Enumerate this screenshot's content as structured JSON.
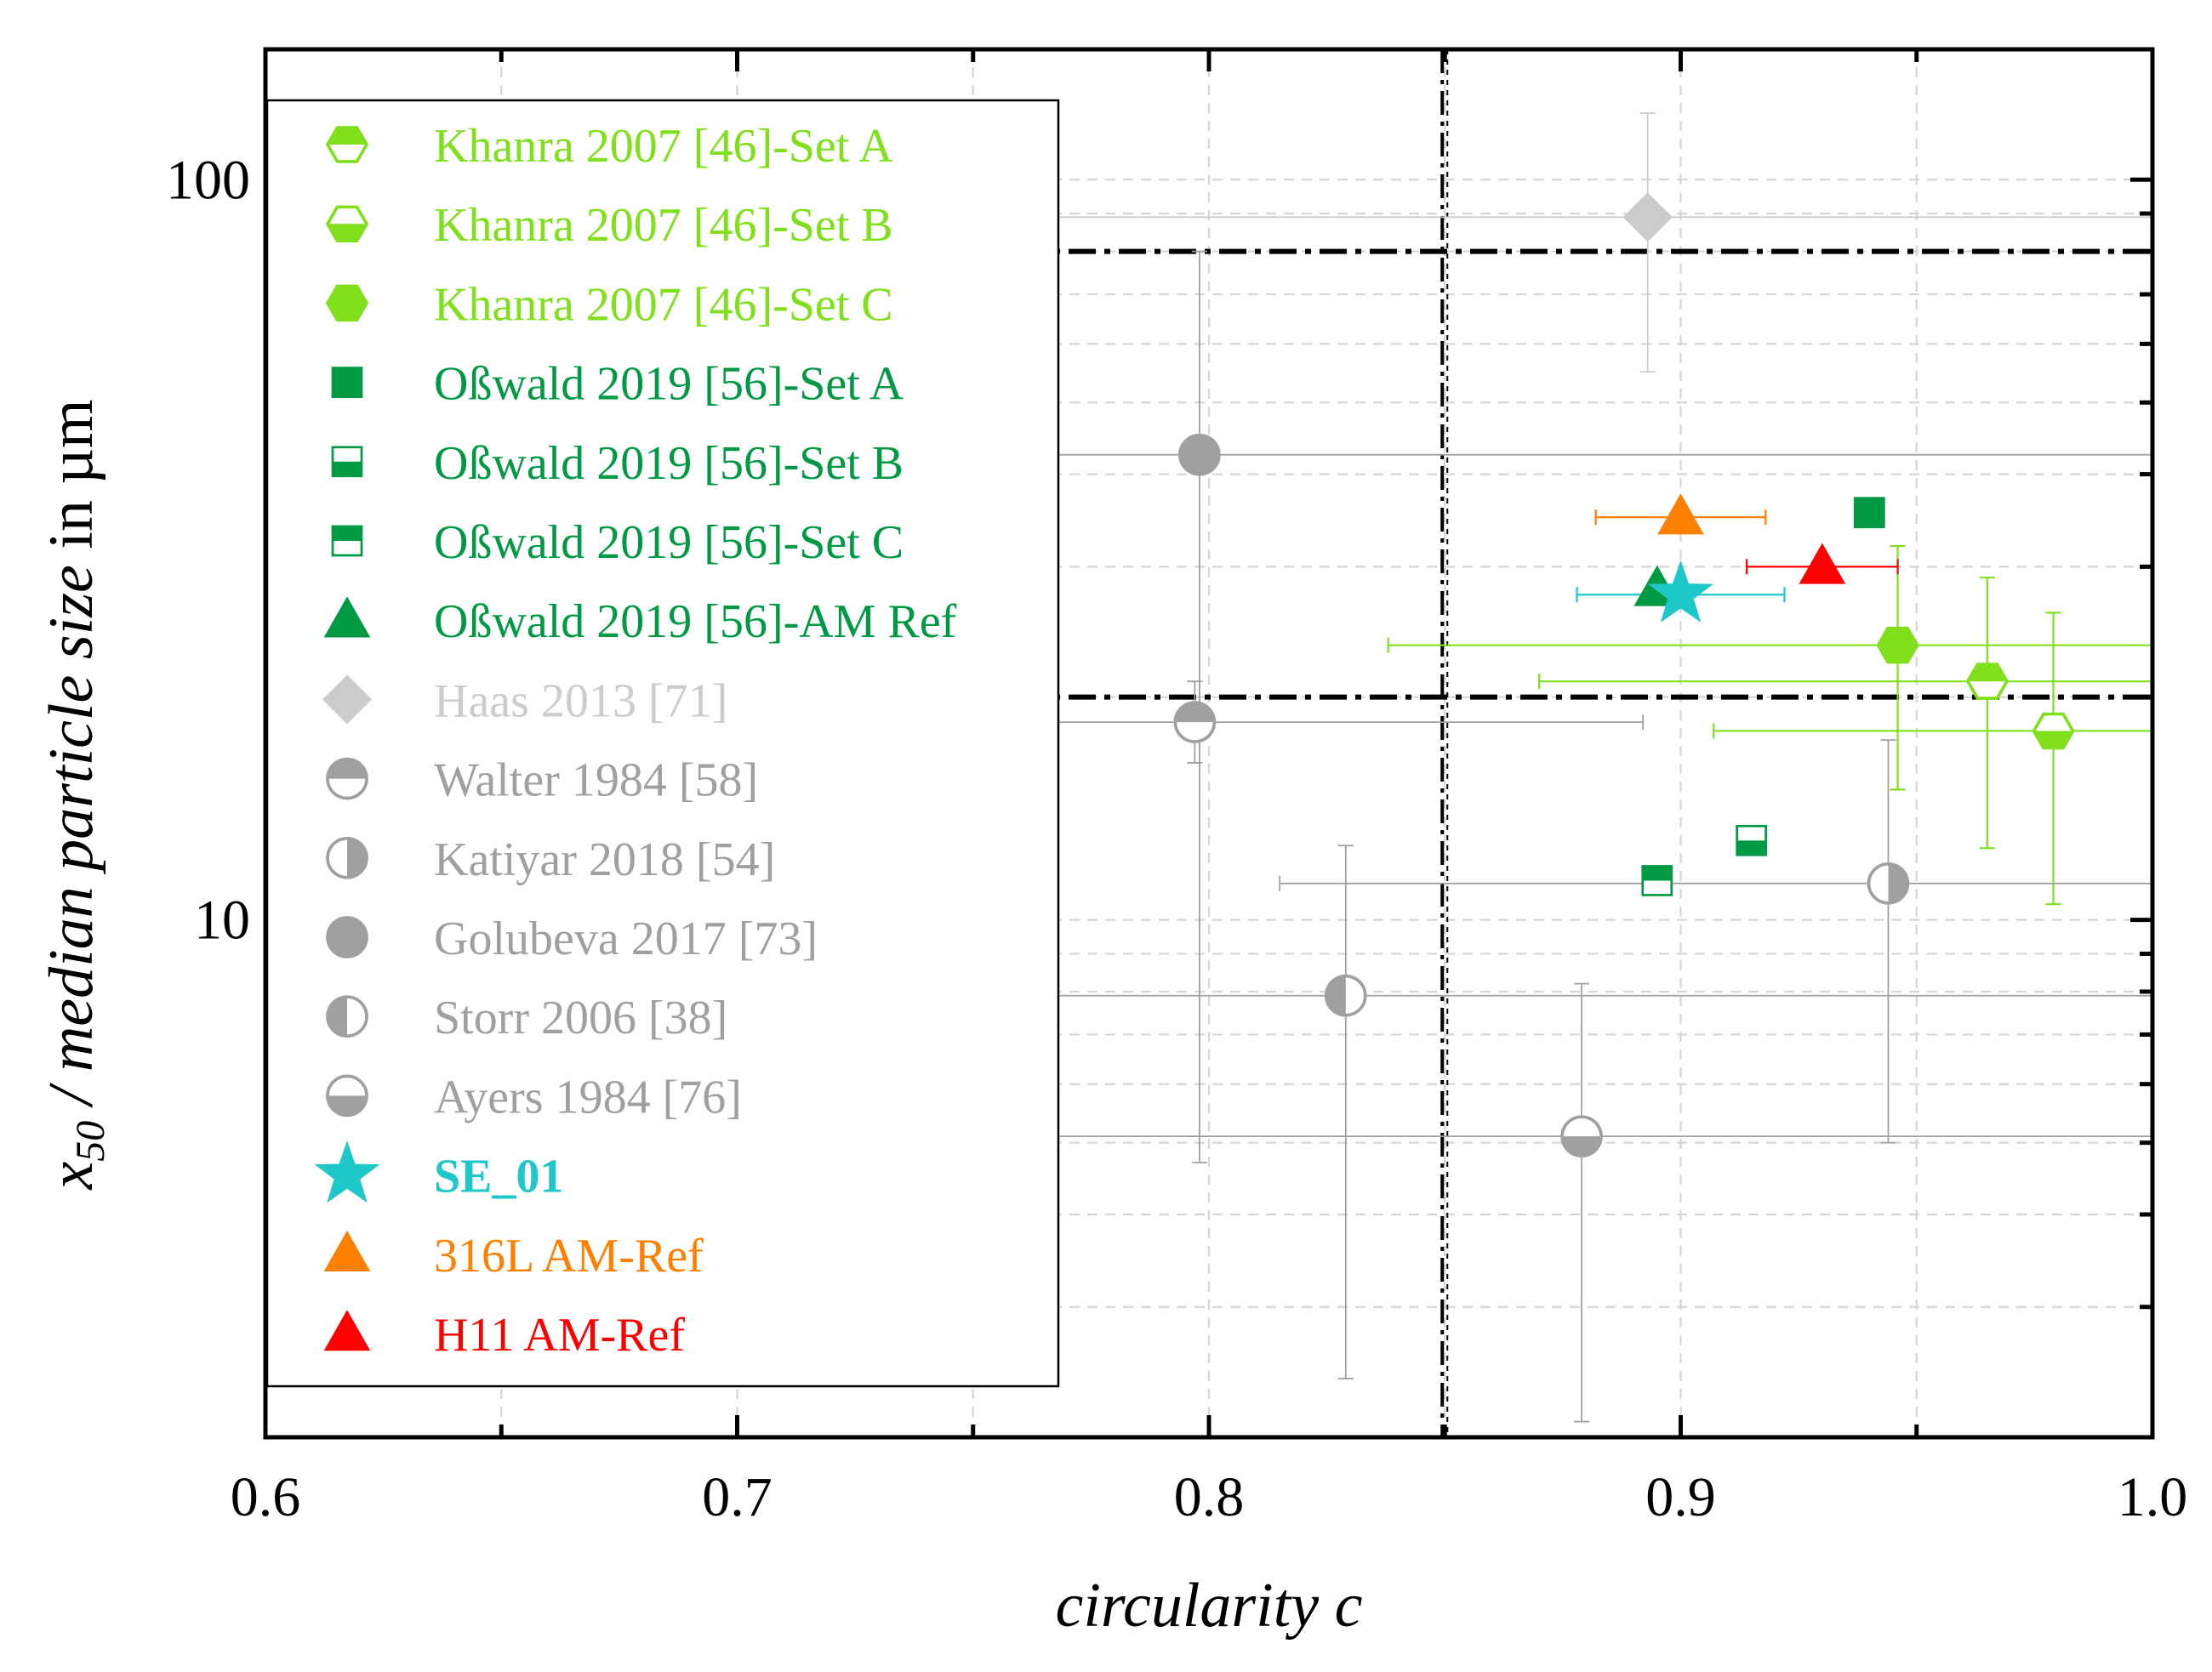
{
  "chart_data": {
    "type": "scatter",
    "xlabel": "circularity c",
    "ylabel_parts": {
      "var": "x",
      "sub": "50",
      "mid": " / median particle size",
      "unit": " in µm"
    },
    "xlim": [
      0.6,
      1.0
    ],
    "ylim": [
      2.0,
      150
    ],
    "yscale": "log",
    "xticks": [
      0.6,
      0.7,
      0.8,
      0.9,
      1.0
    ],
    "xtick_labels": [
      "0.6",
      "0.7",
      "0.8",
      "0.9",
      "1.0"
    ],
    "yticks": [
      10,
      100
    ],
    "ytick_labels": [
      "10",
      "100"
    ],
    "grid": true,
    "legend_position": "top-left",
    "reference_lines": {
      "vertical_x": 0.85,
      "horizontal_y": [
        20,
        80
      ]
    },
    "series": [
      {
        "name": "Khanra 2007 [46]-Set A",
        "color": "#7fe01b",
        "marker": "hexagon",
        "fill": "top",
        "points": [
          {
            "x": 0.965,
            "y": 21,
            "xerr": [
              0.87,
              1.0
            ],
            "yerr": [
              12.5,
              29
            ]
          }
        ]
      },
      {
        "name": "Khanra 2007 [46]-Set B",
        "color": "#7fe01b",
        "marker": "hexagon",
        "fill": "bottom",
        "points": [
          {
            "x": 0.979,
            "y": 18,
            "xerr": [
              0.907,
              1.0
            ],
            "yerr": [
              10.5,
              26
            ]
          }
        ]
      },
      {
        "name": "Khanra 2007 [46]-Set C",
        "color": "#7fe01b",
        "marker": "hexagon",
        "fill": "full",
        "points": [
          {
            "x": 0.946,
            "y": 23.5,
            "xerr": [
              0.838,
              1.0
            ],
            "yerr": [
              15,
              32
            ]
          }
        ]
      },
      {
        "name": "Oßwald 2019 [56]-Set A",
        "color": "#009a44",
        "marker": "square",
        "fill": "full",
        "points": [
          {
            "x": 0.94,
            "y": 35.5
          }
        ]
      },
      {
        "name": "Oßwald 2019 [56]-Set B",
        "color": "#009a44",
        "marker": "square",
        "fill": "bottom",
        "points": [
          {
            "x": 0.915,
            "y": 12.8
          }
        ]
      },
      {
        "name": "Oßwald 2019 [56]-Set C",
        "color": "#009a44",
        "marker": "square",
        "fill": "top",
        "points": [
          {
            "x": 0.895,
            "y": 11.3
          }
        ]
      },
      {
        "name": "Oßwald 2019 [56]-AM Ref",
        "color": "#009a44",
        "marker": "triangle",
        "fill": "full",
        "points": [
          {
            "x": 0.895,
            "y": 28
          }
        ]
      },
      {
        "name": "Haas 2013 [71]",
        "color": "#cccccc",
        "marker": "diamond",
        "fill": "full",
        "points": [
          {
            "x": 0.893,
            "y": 89,
            "xerr": [
              0.6,
              1.0
            ],
            "yerr": [
              55,
              123
            ]
          }
        ]
      },
      {
        "name": "Walter 1984 [58]",
        "color": "#a0a0a0",
        "marker": "circle",
        "fill": "top",
        "points": [
          {
            "x": 0.797,
            "y": 18.5,
            "xerr": [
              0.6,
              0.892
            ],
            "yerr": [
              16.3,
              21
            ]
          }
        ]
      },
      {
        "name": "Katiyar 2018 [54]",
        "color": "#a0a0a0",
        "marker": "circle",
        "fill": "right",
        "points": [
          {
            "x": 0.944,
            "y": 11.2,
            "xerr": [
              0.815,
              1.0
            ],
            "yerr": [
              5.0,
              17.5
            ]
          }
        ]
      },
      {
        "name": "Golubeva 2017 [73]",
        "color": "#a0a0a0",
        "marker": "circle",
        "fill": "full",
        "points": [
          {
            "x": 0.798,
            "y": 42.5,
            "xerr": [
              0.6,
              1.0
            ],
            "yerr": [
              4.7,
              80
            ]
          }
        ]
      },
      {
        "name": "Storr 2006 [38]",
        "color": "#a0a0a0",
        "marker": "circle",
        "fill": "left",
        "points": [
          {
            "x": 0.829,
            "y": 7.9,
            "xerr": [
              0.6,
              1.0
            ],
            "yerr": [
              2.4,
              12.6
            ]
          }
        ]
      },
      {
        "name": "Ayers 1984 [76]",
        "color": "#a0a0a0",
        "marker": "circle",
        "fill": "bottom",
        "points": [
          {
            "x": 0.879,
            "y": 5.1,
            "xerr": [
              0.6,
              1.0
            ],
            "yerr": [
              2.1,
              8.2
            ]
          }
        ]
      },
      {
        "name": "SE_01",
        "color": "#1fc8c8",
        "marker": "star",
        "fill": "full",
        "bold": true,
        "points": [
          {
            "x": 0.9,
            "y": 27.5,
            "xerr": [
              0.878,
              0.922
            ]
          }
        ]
      },
      {
        "name": "316L AM-Ref",
        "color": "#ff7f00",
        "marker": "triangle",
        "fill": "full",
        "points": [
          {
            "x": 0.9,
            "y": 35,
            "xerr": [
              0.882,
              0.918
            ]
          }
        ]
      },
      {
        "name": "H11 AM-Ref",
        "color": "#ff0000",
        "marker": "triangle",
        "fill": "full",
        "points": [
          {
            "x": 0.93,
            "y": 30,
            "xerr": [
              0.914,
              0.946
            ]
          }
        ]
      }
    ]
  }
}
